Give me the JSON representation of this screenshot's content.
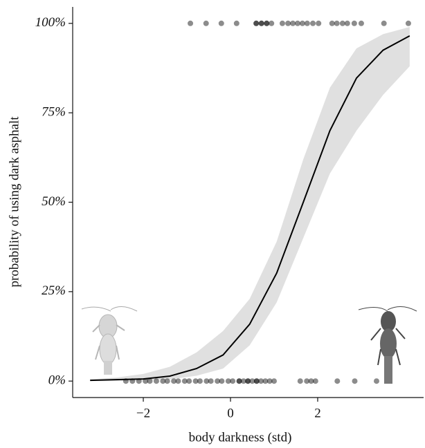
{
  "chart_data": {
    "type": "line",
    "xlabel": "body darkness (std)",
    "ylabel": "probability of using dark asphalt",
    "xlim": [
      -3.62,
      4.43
    ],
    "ylim": [
      -4.6,
      104.6
    ],
    "xticks": [
      {
        "value": -2,
        "label": "−2"
      },
      0,
      2
    ],
    "yticks": [
      {
        "value": 0,
        "label": "0%"
      },
      {
        "value": 25,
        "label": "25%"
      },
      {
        "value": 50,
        "label": "50%"
      },
      {
        "value": 75,
        "label": "75%"
      },
      {
        "value": 100,
        "label": "100%"
      }
    ],
    "line_color": "#000000",
    "band_color": "#e0e0e0",
    "point_color": "rgba(0,0,0,0.45)",
    "x": [
      -3.22,
      -2.61,
      -2.0,
      -1.39,
      -0.78,
      -0.17,
      0.44,
      1.06,
      1.67,
      2.28,
      2.89,
      3.5,
      4.11
    ],
    "values": [
      0.2,
      0.4,
      0.6,
      1.4,
      3.5,
      7.3,
      15.9,
      30.2,
      50,
      70,
      84.7,
      92.5,
      96.5
    ],
    "lower": [
      0,
      0,
      0.2,
      0.5,
      1.5,
      3.5,
      10,
      22,
      40,
      58,
      70,
      80,
      88
    ],
    "upper": [
      0.5,
      1,
      2,
      4,
      8,
      14,
      23,
      39,
      62,
      82,
      93,
      97,
      99
    ],
    "points_x": [
      -2.4,
      -2.25,
      -2.1,
      -1.95,
      -1.85,
      -1.7,
      -1.55,
      -1.45,
      -1.3,
      -1.2,
      -1.05,
      -0.95,
      -0.8,
      -0.7,
      -0.55,
      -0.45,
      -0.3,
      -0.2,
      -0.05,
      0.05,
      0.2,
      0.2,
      0.3,
      0.4,
      0.4,
      0.5,
      0.6,
      0.6,
      0.7,
      0.8,
      0.9,
      1.0,
      1.6,
      1.75,
      1.85,
      1.95,
      2.45,
      2.85,
      3.35,
      -0.92,
      -0.56,
      -0.21,
      0.14,
      0.59,
      0.59,
      0.71,
      0.71,
      0.83,
      0.83,
      0.94,
      1.19,
      1.32,
      1.43,
      1.54,
      1.65,
      1.76,
      1.89,
      2.02,
      2.33,
      2.44,
      2.57,
      2.68,
      2.84,
      3.0,
      3.52,
      4.08
    ],
    "points_y": [
      0,
      0,
      0,
      0,
      0,
      0,
      0,
      0,
      0,
      0,
      0,
      0,
      0,
      0,
      0,
      0,
      0,
      0,
      0,
      0,
      0,
      0,
      0,
      0,
      0,
      0,
      0,
      0,
      0,
      0,
      0,
      0,
      0,
      0,
      0,
      0,
      0,
      0,
      0,
      100,
      100,
      100,
      100,
      100,
      100,
      100,
      100,
      100,
      100,
      100,
      100,
      100,
      100,
      100,
      100,
      100,
      100,
      100,
      100,
      100,
      100,
      100,
      100,
      100,
      100,
      100
    ]
  }
}
